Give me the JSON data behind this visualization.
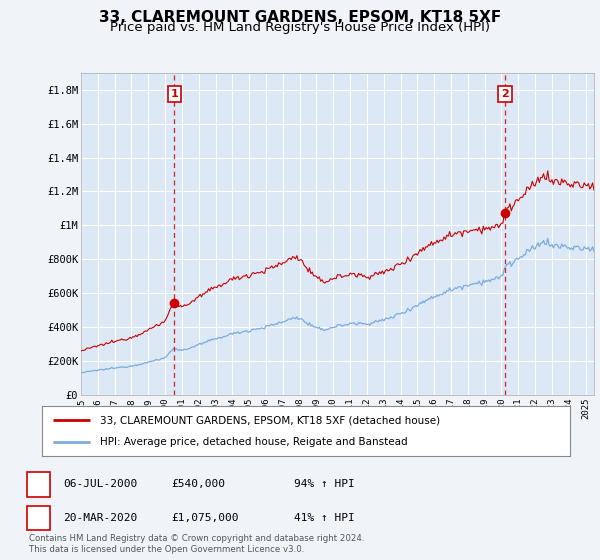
{
  "title": "33, CLAREMOUNT GARDENS, EPSOM, KT18 5XF",
  "subtitle": "Price paid vs. HM Land Registry's House Price Index (HPI)",
  "ylim": [
    0,
    1900000
  ],
  "xlim_start": 1995.0,
  "xlim_end": 2025.5,
  "yticks": [
    0,
    200000,
    400000,
    600000,
    800000,
    1000000,
    1200000,
    1400000,
    1600000,
    1800000
  ],
  "ytick_labels": [
    "£0",
    "£200K",
    "£400K",
    "£600K",
    "£800K",
    "£1M",
    "£1.2M",
    "£1.4M",
    "£1.6M",
    "£1.8M"
  ],
  "xtick_years": [
    1995,
    1996,
    1997,
    1998,
    1999,
    2000,
    2001,
    2002,
    2003,
    2004,
    2005,
    2006,
    2007,
    2008,
    2009,
    2010,
    2011,
    2012,
    2013,
    2014,
    2015,
    2016,
    2017,
    2018,
    2019,
    2020,
    2021,
    2022,
    2023,
    2024,
    2025
  ],
  "sale1_date": 2000.54,
  "sale1_price": 540000,
  "sale1_label": "1",
  "sale2_date": 2020.21,
  "sale2_price": 1075000,
  "sale2_label": "2",
  "red_line_color": "#cc0000",
  "blue_line_color": "#7aade0",
  "vline_color": "#cc0000",
  "background_color": "#f0f4f8",
  "plot_bg_color": "#dce8f5",
  "grid_color": "#ffffff",
  "legend1_text": "33, CLAREMOUNT GARDENS, EPSOM, KT18 5XF (detached house)",
  "legend2_text": "HPI: Average price, detached house, Reigate and Banstead",
  "ann1_date": "06-JUL-2000",
  "ann1_price": "£540,000",
  "ann1_pct": "94% ↑ HPI",
  "ann2_date": "20-MAR-2020",
  "ann2_price": "£1,075,000",
  "ann2_pct": "41% ↑ HPI",
  "footer1": "Contains HM Land Registry data © Crown copyright and database right 2024.",
  "footer2": "This data is licensed under the Open Government Licence v3.0.",
  "title_fontsize": 11,
  "subtitle_fontsize": 9.5,
  "hpi_anchors_t": [
    1995.0,
    1996.0,
    1997.0,
    1998.0,
    1999.0,
    2000.0,
    2000.54,
    2001.0,
    2002.0,
    2003.0,
    2004.0,
    2005.0,
    2006.0,
    2007.0,
    2007.8,
    2008.5,
    2009.0,
    2009.5,
    2010.0,
    2011.0,
    2012.0,
    2013.0,
    2014.0,
    2015.0,
    2016.0,
    2017.0,
    2018.0,
    2019.0,
    2020.0,
    2020.21,
    2021.0,
    2022.0,
    2022.5,
    2023.0,
    2024.0,
    2025.0
  ],
  "hpi_anchors_v": [
    130000,
    145000,
    158000,
    170000,
    192000,
    218000,
    278000,
    260000,
    295000,
    330000,
    360000,
    380000,
    400000,
    430000,
    460000,
    420000,
    390000,
    385000,
    400000,
    420000,
    420000,
    440000,
    480000,
    530000,
    580000,
    620000,
    650000,
    670000,
    690000,
    760000,
    800000,
    870000,
    910000,
    880000,
    870000,
    860000
  ]
}
